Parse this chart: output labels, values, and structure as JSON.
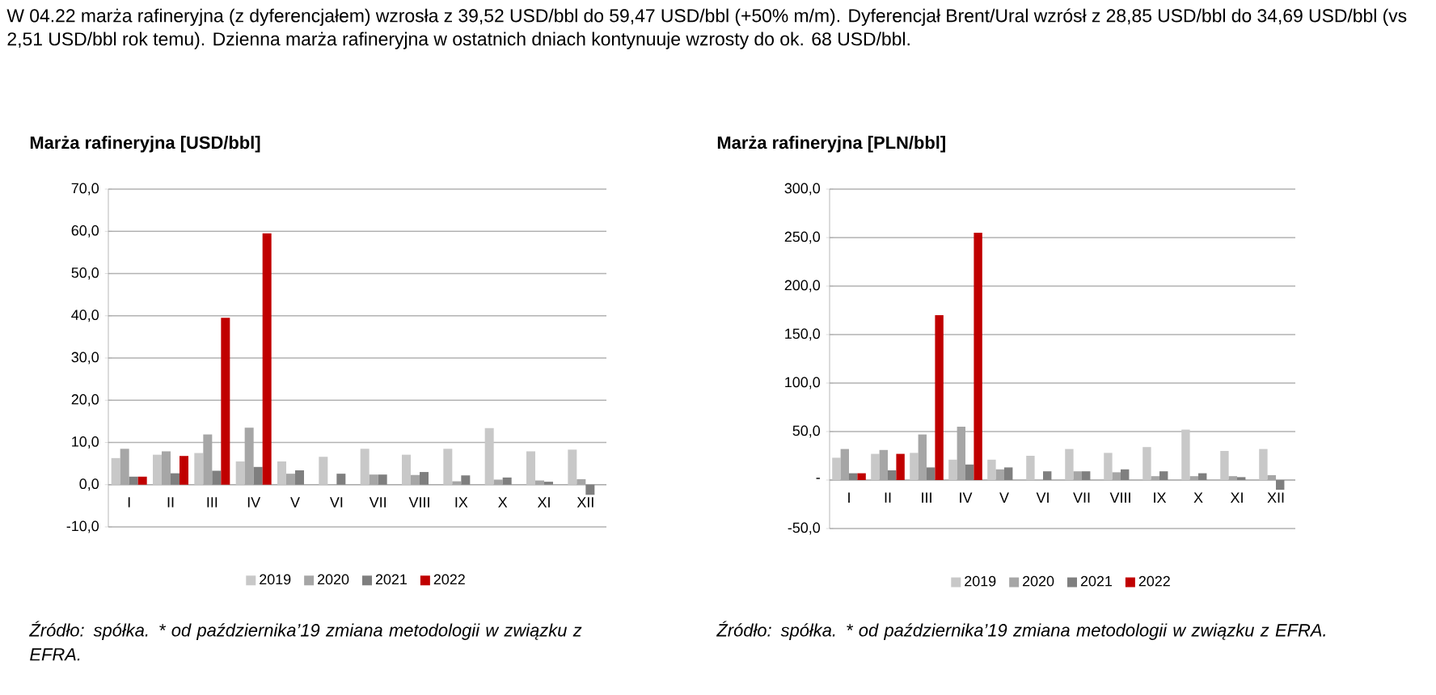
{
  "chart_data": [
    {
      "type": "other",
      "annotations": [
        "W 04.22 marża rafineryjna (z dyferencjałem) wzrosła z 39,52 USD/bbl do 59,47 USD/bbl (+50% m/m). Dyferencjał Brent/Ural wzrósł z 28,85 USD/bbl do 34,69 USD/bbl (vs 2,51 USD/bbl rok temu). Dzienna marża rafineryjna w ostatnich dniach kontynuuje wzrosty do ok. 68 USD/bbl."
      ]
    },
    {
      "type": "bar",
      "title": "Marża rafineryjna [USD/bbl]",
      "categories": [
        "I",
        "II",
        "III",
        "IV",
        "V",
        "VI",
        "VII",
        "VIII",
        "IX",
        "X",
        "XI",
        "XII"
      ],
      "series": [
        {
          "name": "2019",
          "color": "#c8c8c8",
          "values": [
            6.3,
            7.1,
            7.5,
            5.5,
            5.5,
            6.6,
            8.5,
            7.1,
            8.5,
            13.4,
            7.9,
            8.3
          ]
        },
        {
          "name": "2020",
          "color": "#a6a6a6",
          "values": [
            8.5,
            7.9,
            11.9,
            13.5,
            2.6,
            null,
            2.4,
            2.3,
            0.8,
            1.2,
            1.0,
            1.3
          ]
        },
        {
          "name": "2021",
          "color": "#7f7f7f",
          "values": [
            1.9,
            2.7,
            3.3,
            4.2,
            3.4,
            2.6,
            2.4,
            3.0,
            2.2,
            1.7,
            0.7,
            -2.4
          ]
        },
        {
          "name": "2022",
          "color": "#c00000",
          "values": [
            1.9,
            6.8,
            39.5,
            59.5,
            null,
            null,
            null,
            null,
            null,
            null,
            null,
            null
          ]
        }
      ],
      "ylim": [
        -10,
        70
      ],
      "yticks": [
        {
          "value": -10,
          "label": "-10,0"
        },
        {
          "value": 0,
          "label": "0,0"
        },
        {
          "value": 10,
          "label": "10,0"
        },
        {
          "value": 20,
          "label": "20,0"
        },
        {
          "value": 30,
          "label": "30,0"
        },
        {
          "value": 40,
          "label": "40,0"
        },
        {
          "value": 50,
          "label": "50,0"
        },
        {
          "value": 60,
          "label": "60,0"
        },
        {
          "value": 70,
          "label": "70,0"
        }
      ],
      "grid": "y",
      "legend": "bottom",
      "annotations": [
        "Źródło: spółka. * od października’19 zmiana metodologii w związku z EFRA."
      ]
    },
    {
      "type": "bar",
      "title": "Marża rafineryjna [PLN/bbl]",
      "categories": [
        "I",
        "II",
        "III",
        "IV",
        "V",
        "VI",
        "VII",
        "VIII",
        "IX",
        "X",
        "XI",
        "XII"
      ],
      "series": [
        {
          "name": "2019",
          "color": "#c8c8c8",
          "values": [
            23,
            27,
            28,
            21,
            21,
            25,
            32,
            28,
            34,
            52,
            30,
            32
          ]
        },
        {
          "name": "2020",
          "color": "#a6a6a6",
          "values": [
            32,
            31,
            47,
            55,
            11,
            null,
            9,
            8,
            4,
            4,
            4,
            5
          ]
        },
        {
          "name": "2021",
          "color": "#7f7f7f",
          "values": [
            7,
            10,
            13,
            16,
            13,
            9,
            9,
            11,
            9,
            7,
            3,
            -10
          ]
        },
        {
          "name": "2022",
          "color": "#c00000",
          "values": [
            7,
            27,
            170,
            255,
            null,
            null,
            null,
            null,
            null,
            null,
            null,
            null
          ]
        }
      ],
      "ylim": [
        -50,
        300
      ],
      "yticks": [
        {
          "value": -50,
          "label": "-50,0"
        },
        {
          "value": 0,
          "label": "-"
        },
        {
          "value": 50,
          "label": "50,0"
        },
        {
          "value": 100,
          "label": "100,0"
        },
        {
          "value": 150,
          "label": "150,0"
        },
        {
          "value": 200,
          "label": "200,0"
        },
        {
          "value": 250,
          "label": "250,0"
        },
        {
          "value": 300,
          "label": "300,0"
        }
      ],
      "grid": "y",
      "legend": "bottom",
      "annotations": [
        "Źródło: spółka. * od października’19 zmiana metodologii w związku z EFRA."
      ]
    }
  ]
}
